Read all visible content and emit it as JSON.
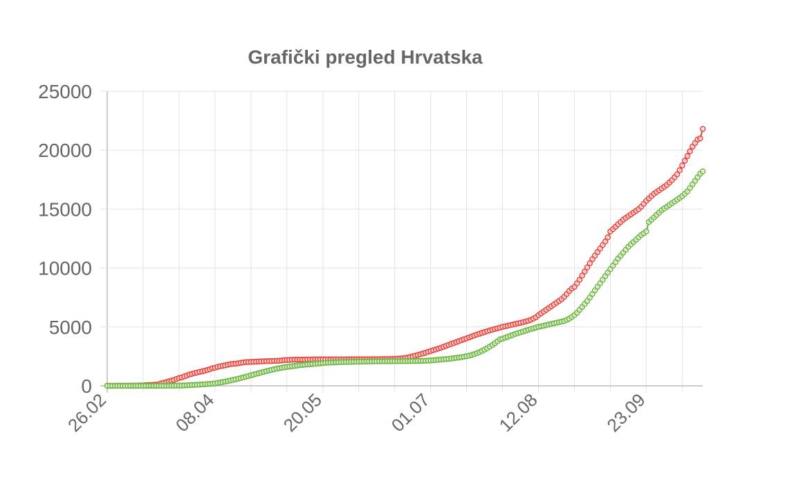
{
  "chart_data": {
    "type": "line",
    "title": "Grafički pregled Hrvatska",
    "categories": [
      "26.02",
      null,
      null,
      null,
      null,
      null,
      null,
      null,
      null,
      null,
      null,
      null,
      null,
      null,
      null,
      null,
      null,
      null,
      null,
      null,
      null,
      null,
      null,
      null,
      null,
      null,
      null,
      null,
      null,
      null,
      null,
      null,
      null,
      null,
      null,
      null,
      null,
      null,
      null,
      null,
      null,
      null,
      "08.04",
      null,
      null,
      null,
      null,
      null,
      null,
      null,
      null,
      null,
      null,
      null,
      null,
      null,
      null,
      null,
      null,
      null,
      null,
      null,
      null,
      null,
      null,
      null,
      null,
      null,
      null,
      null,
      null,
      null,
      null,
      null,
      null,
      null,
      null,
      null,
      null,
      null,
      null,
      null,
      null,
      null,
      "20.05",
      null,
      null,
      null,
      null,
      null,
      null,
      null,
      null,
      null,
      null,
      null,
      null,
      null,
      null,
      null,
      null,
      null,
      null,
      null,
      null,
      null,
      null,
      null,
      null,
      null,
      null,
      null,
      null,
      null,
      null,
      null,
      null,
      null,
      null,
      null,
      null,
      null,
      null,
      null,
      null,
      null,
      "01.07",
      null,
      null,
      null,
      null,
      null,
      null,
      null,
      null,
      null,
      null,
      null,
      null,
      null,
      null,
      null,
      null,
      null,
      null,
      null,
      null,
      null,
      null,
      null,
      null,
      null,
      null,
      null,
      null,
      null,
      null,
      null,
      null,
      null,
      null,
      null,
      null,
      null,
      null,
      null,
      null,
      null,
      "12.08",
      null,
      null,
      null,
      null,
      null,
      null,
      null,
      null,
      null,
      null,
      null,
      null,
      null,
      null,
      null,
      null,
      null,
      null,
      null,
      null,
      null,
      null,
      null,
      null,
      null,
      null,
      null,
      null,
      null,
      null,
      null,
      null,
      null,
      null,
      null,
      null,
      null,
      null,
      null,
      null,
      null,
      "23.09",
      null,
      null,
      null,
      null,
      null,
      null,
      null,
      null,
      null,
      null,
      null,
      null,
      null,
      null,
      null,
      null,
      null,
      null,
      null,
      null,
      null,
      null
    ],
    "series": [
      {
        "color": "#e8413a",
        "values": [
          0,
          0,
          1,
          3,
          5,
          7,
          9,
          10,
          11,
          12,
          13,
          14,
          19,
          27,
          32,
          49,
          56,
          65,
          81,
          105,
          128,
          206,
          254,
          315,
          382,
          442,
          495,
          586,
          657,
          713,
          790,
          867,
          963,
          1011,
          1079,
          1126,
          1182,
          1222,
          1282,
          1343,
          1407,
          1495,
          1534,
          1600,
          1650,
          1704,
          1741,
          1791,
          1832,
          1871,
          1881,
          1908,
          1950,
          1981,
          2009,
          2016,
          2030,
          2039,
          2047,
          2062,
          2076,
          2085,
          2088,
          2096,
          2101,
          2112,
          2119,
          2125,
          2146,
          2176,
          2187,
          2196,
          2205,
          2213,
          2221,
          2224,
          2226,
          2228,
          2232,
          2232,
          2234,
          2238,
          2243,
          2244,
          2244,
          2245,
          2245,
          2246,
          2246,
          2247,
          2247,
          2247,
          2247,
          2247,
          2249,
          2249,
          2249,
          2250,
          2252,
          2252,
          2252,
          2252,
          2252,
          2255,
          2258,
          2260,
          2262,
          2264,
          2266,
          2268,
          2270,
          2280,
          2290,
          2300,
          2310,
          2330,
          2360,
          2400,
          2450,
          2500,
          2560,
          2620,
          2680,
          2740,
          2810,
          2880,
          2950,
          3020,
          3090,
          3160,
          3230,
          3310,
          3390,
          3470,
          3550,
          3630,
          3710,
          3790,
          3870,
          3950,
          4030,
          4110,
          4190,
          4270,
          4350,
          4420,
          4490,
          4560,
          4630,
          4700,
          4760,
          4820,
          4880,
          4940,
          5000,
          5050,
          5100,
          5150,
          5200,
          5250,
          5300,
          5350,
          5400,
          5460,
          5520,
          5600,
          5700,
          5820,
          6000,
          6150,
          6300,
          6450,
          6600,
          6750,
          6900,
          7050,
          7200,
          7350,
          7550,
          7800,
          8050,
          8250,
          8400,
          8700,
          9000,
          9350,
          9700,
          10050,
          10400,
          10750,
          11050,
          11350,
          11650,
          11950,
          12250,
          12600,
          13100,
          13300,
          13500,
          13700,
          13900,
          14100,
          14250,
          14400,
          14550,
          14700,
          14850,
          15000,
          15200,
          15450,
          15700,
          15900,
          16100,
          16300,
          16450,
          16600,
          16750,
          16900,
          17050,
          17250,
          17450,
          17700,
          17950,
          18300,
          18700,
          19100,
          19500,
          19900,
          20300,
          20600,
          20900,
          21000,
          21800
        ]
      },
      {
        "color": "#6ab43c",
        "values": [
          0,
          0,
          0,
          0,
          0,
          0,
          0,
          0,
          0,
          0,
          0,
          0,
          0,
          0,
          0,
          0,
          1,
          1,
          1,
          2,
          2,
          5,
          5,
          5,
          14,
          14,
          14,
          14,
          21,
          21,
          30,
          40,
          52,
          67,
          71,
          85,
          100,
          120,
          135,
          150,
          165,
          180,
          200,
          240,
          280,
          320,
          360,
          400,
          450,
          500,
          550,
          600,
          650,
          710,
          770,
          830,
          890,
          950,
          1010,
          1070,
          1130,
          1190,
          1240,
          1300,
          1350,
          1400,
          1450,
          1490,
          1530,
          1570,
          1600,
          1630,
          1660,
          1690,
          1720,
          1750,
          1770,
          1790,
          1810,
          1830,
          1850,
          1870,
          1890,
          1910,
          1930,
          1950,
          1960,
          1970,
          1980,
          1990,
          2000,
          2010,
          2020,
          2025,
          2030,
          2035,
          2040,
          2045,
          2050,
          2055,
          2060,
          2065,
          2070,
          2072,
          2074,
          2076,
          2078,
          2080,
          2082,
          2084,
          2086,
          2088,
          2090,
          2092,
          2094,
          2096,
          2098,
          2100,
          2102,
          2104,
          2106,
          2110,
          2115,
          2120,
          2130,
          2140,
          2150,
          2170,
          2190,
          2210,
          2230,
          2250,
          2270,
          2290,
          2310,
          2340,
          2370,
          2400,
          2430,
          2470,
          2510,
          2560,
          2620,
          2690,
          2770,
          2860,
          2960,
          3070,
          3190,
          3320,
          3460,
          3610,
          3770,
          3940,
          4000,
          4080,
          4160,
          4240,
          4320,
          4400,
          4470,
          4540,
          4610,
          4680,
          4750,
          4820,
          4880,
          4940,
          5000,
          5050,
          5100,
          5150,
          5200,
          5250,
          5300,
          5350,
          5400,
          5450,
          5500,
          5600,
          5700,
          5850,
          6000,
          6200,
          6450,
          6700,
          6950,
          7200,
          7500,
          7800,
          8100,
          8400,
          8700,
          9000,
          9300,
          9600,
          9900,
          10200,
          10500,
          10800,
          11050,
          11300,
          11550,
          11800,
          12000,
          12200,
          12400,
          12600,
          12800,
          12950,
          13100,
          13900,
          14100,
          14300,
          14500,
          14700,
          14900,
          15050,
          15200,
          15350,
          15500,
          15650,
          15800,
          15950,
          16100,
          16300,
          16500,
          16800,
          17100,
          17400,
          17700,
          18000,
          18200
        ]
      }
    ],
    "ylim": [
      0,
      25000
    ],
    "yticks": [
      0,
      5000,
      10000,
      15000,
      20000,
      25000
    ],
    "grid": true
  }
}
